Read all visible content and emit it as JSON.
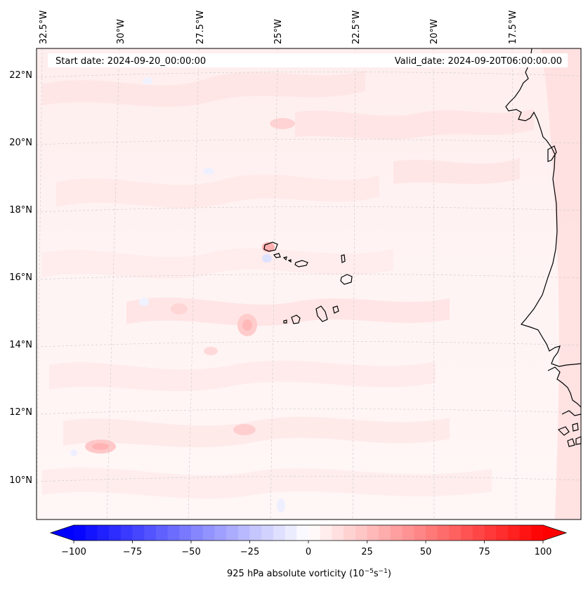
{
  "map": {
    "projection": "lambert-conformal",
    "extent": {
      "lon": [
        "32.5°W",
        "15.5°W"
      ],
      "lat": [
        "9°N",
        "22.8°N"
      ]
    },
    "longitude_labels": [
      "32.5°W",
      "30°W",
      "27.5°W",
      "25°W",
      "22.5°W",
      "20°W",
      "17.5°W"
    ],
    "latitude_labels": [
      "22°N",
      "20°N",
      "18°N",
      "16°N",
      "14°N",
      "12°N",
      "10°N"
    ],
    "gridlines": true,
    "start_date": "Start date: 2024-09-20_00:00:00",
    "valid_date": "Valid_date: 2024-09-20T06:00:00.00",
    "features": [
      "Cape Verde islands",
      "West African coastline (Mauritania, Senegal, Gambia, Guinea-Bissau)"
    ]
  },
  "colorbar": {
    "label": "925 hPa absolute vorticity (10",
    "label_exp1": "−5",
    "label_mid": "s",
    "label_exp2": "−1",
    "label_end": ")",
    "tick_labels": [
      "−100",
      "−75",
      "−50",
      "−25",
      "0",
      "25",
      "50",
      "75",
      "100"
    ],
    "min": -100,
    "max": 100,
    "step": 5,
    "extend": "both",
    "colormap": "bwr",
    "color_min": "#0000ff",
    "color_mid": "#ffffff",
    "color_max": "#ff0000"
  }
}
